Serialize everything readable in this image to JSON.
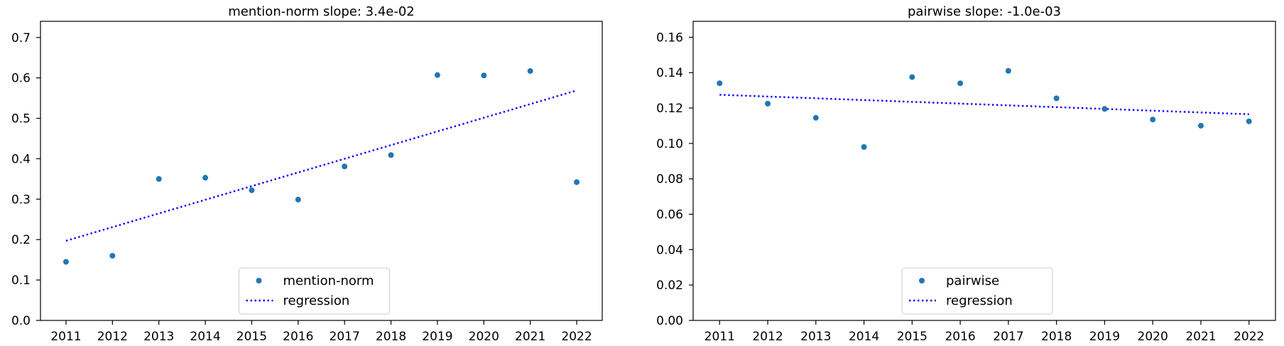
{
  "chart_data": [
    {
      "type": "scatter",
      "title": "mention-norm slope: 3.4e-02",
      "xlabel": "",
      "ylabel": "",
      "x": [
        2011,
        2012,
        2013,
        2014,
        2015,
        2016,
        2017,
        2018,
        2019,
        2020,
        2021,
        2022
      ],
      "x_tick_labels": [
        "2011",
        "2012",
        "2013",
        "2014",
        "2015",
        "2016",
        "2017",
        "2018",
        "2019",
        "2020",
        "2021",
        "2022"
      ],
      "y_tick_labels": [
        "0.0",
        "0.1",
        "0.2",
        "0.3",
        "0.4",
        "0.5",
        "0.6",
        "0.7"
      ],
      "y_ticks": [
        0.0,
        0.1,
        0.2,
        0.3,
        0.4,
        0.5,
        0.6,
        0.7
      ],
      "ylim": [
        0.0,
        0.74
      ],
      "xlim": [
        2010.45,
        2022.55
      ],
      "grid": false,
      "legend_position": "lower-center",
      "series": [
        {
          "name": "mention-norm",
          "kind": "points",
          "color": "#1f77b4",
          "values": [
            0.145,
            0.16,
            0.35,
            0.353,
            0.322,
            0.299,
            0.381,
            0.409,
            0.607,
            0.606,
            0.617,
            0.342
          ]
        },
        {
          "name": "regression",
          "kind": "dotted-line",
          "color": "#0000ff",
          "x": [
            2011,
            2022
          ],
          "values": [
            0.197,
            0.569
          ]
        }
      ]
    },
    {
      "type": "scatter",
      "title": "pairwise slope: -1.0e-03",
      "xlabel": "",
      "ylabel": "",
      "x": [
        2011,
        2012,
        2013,
        2014,
        2015,
        2016,
        2017,
        2018,
        2019,
        2020,
        2021,
        2022
      ],
      "x_tick_labels": [
        "2011",
        "2012",
        "2013",
        "2014",
        "2015",
        "2016",
        "2017",
        "2018",
        "2019",
        "2020",
        "2021",
        "2022"
      ],
      "y_tick_labels": [
        "0.00",
        "0.02",
        "0.04",
        "0.06",
        "0.08",
        "0.10",
        "0.12",
        "0.14",
        "0.16"
      ],
      "y_ticks": [
        0.0,
        0.02,
        0.04,
        0.06,
        0.08,
        0.1,
        0.12,
        0.14,
        0.16
      ],
      "ylim": [
        0.0,
        0.169
      ],
      "xlim": [
        2010.45,
        2022.55
      ],
      "grid": false,
      "legend_position": "lower-center",
      "series": [
        {
          "name": "pairwise",
          "kind": "points",
          "color": "#1f77b4",
          "values": [
            0.134,
            0.1225,
            0.1145,
            0.098,
            0.1375,
            0.134,
            0.141,
            0.1255,
            0.1195,
            0.1135,
            0.11,
            0.1125
          ]
        },
        {
          "name": "regression",
          "kind": "dotted-line",
          "color": "#0000ff",
          "x": [
            2011,
            2022
          ],
          "values": [
            0.1275,
            0.1165
          ]
        }
      ]
    }
  ]
}
